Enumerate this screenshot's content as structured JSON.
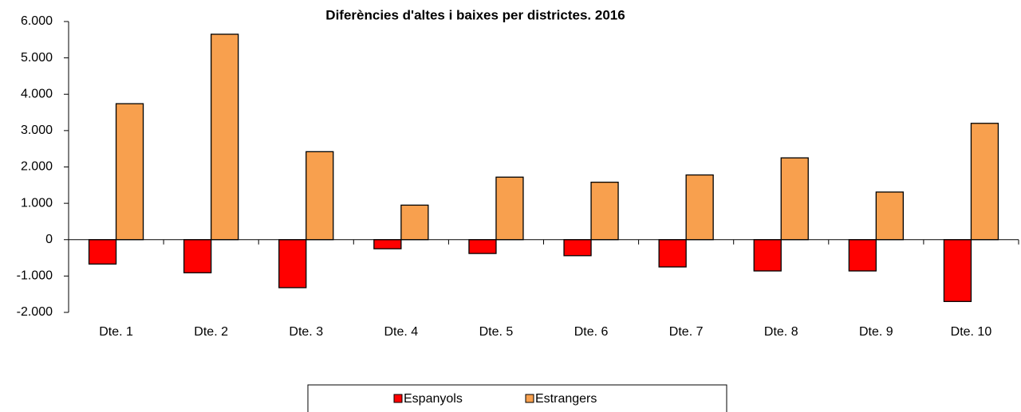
{
  "chart_data": {
    "type": "bar",
    "title": "Diferències d'altes i baixes per districtes. 2016",
    "categories": [
      "Dte. 1",
      "Dte. 2",
      "Dte. 3",
      "Dte. 4",
      "Dte. 5",
      "Dte. 6",
      "Dte. 7",
      "Dte. 8",
      "Dte. 9",
      "Dte. 10"
    ],
    "series": [
      {
        "name": "Espanyols",
        "color": "#ff0000",
        "values": [
          -670,
          -910,
          -1320,
          -250,
          -380,
          -440,
          -750,
          -860,
          -860,
          -1700
        ]
      },
      {
        "name": "Estrangers",
        "color": "#f8a04e",
        "values": [
          3740,
          5650,
          2420,
          950,
          1720,
          1580,
          1780,
          2250,
          1310,
          3200
        ]
      }
    ],
    "ylim": [
      -2000,
      6000
    ],
    "yticks": [
      {
        "value": -2000,
        "label": "-2.000"
      },
      {
        "value": -1000,
        "label": "-1.000"
      },
      0,
      {
        "value": 1000,
        "label": "1.000"
      },
      {
        "value": 2000,
        "label": "2.000"
      },
      {
        "value": 3000,
        "label": "3.000"
      },
      {
        "value": 4000,
        "label": "4.000"
      },
      {
        "value": 5000,
        "label": "5.000"
      },
      {
        "value": 6000,
        "label": "6.000"
      }
    ],
    "grid": false,
    "legend": "bottom"
  }
}
